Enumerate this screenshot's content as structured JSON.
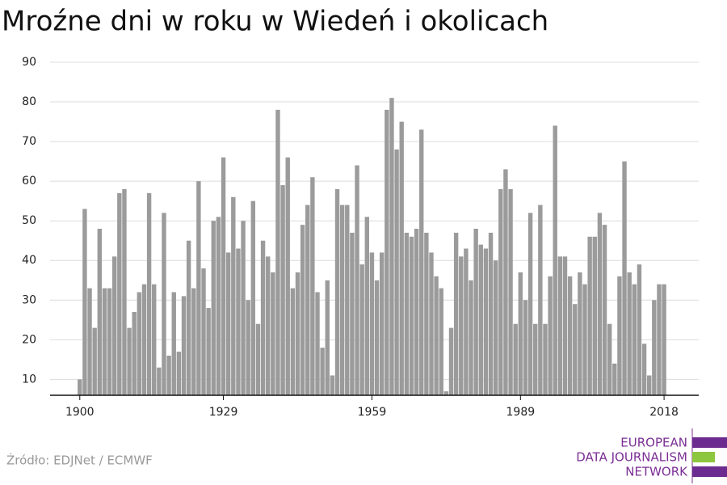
{
  "chart_data": {
    "type": "bar",
    "title": "Mroźne dni w roku w Wiedeń i okolicach",
    "x": [
      1900,
      1901,
      1902,
      1903,
      1904,
      1905,
      1906,
      1907,
      1908,
      1909,
      1910,
      1911,
      1912,
      1913,
      1914,
      1915,
      1916,
      1917,
      1918,
      1919,
      1920,
      1921,
      1922,
      1923,
      1924,
      1925,
      1926,
      1927,
      1928,
      1929,
      1930,
      1931,
      1932,
      1933,
      1934,
      1935,
      1936,
      1937,
      1938,
      1939,
      1940,
      1941,
      1942,
      1943,
      1944,
      1945,
      1946,
      1947,
      1948,
      1949,
      1950,
      1951,
      1952,
      1953,
      1954,
      1955,
      1956,
      1957,
      1958,
      1959,
      1960,
      1961,
      1962,
      1963,
      1964,
      1965,
      1966,
      1967,
      1968,
      1969,
      1970,
      1971,
      1972,
      1973,
      1974,
      1975,
      1976,
      1977,
      1978,
      1979,
      1980,
      1981,
      1982,
      1983,
      1984,
      1985,
      1986,
      1987,
      1988,
      1989,
      1990,
      1991,
      1992,
      1993,
      1994,
      1995,
      1996,
      1997,
      1998,
      1999,
      2000,
      2001,
      2002,
      2003,
      2004,
      2005,
      2006,
      2007,
      2008,
      2009,
      2010,
      2011,
      2012,
      2013,
      2014,
      2015,
      2016,
      2017,
      2018
    ],
    "values": [
      10,
      53,
      33,
      23,
      48,
      33,
      33,
      41,
      57,
      58,
      23,
      27,
      32,
      34,
      57,
      34,
      13,
      52,
      16,
      32,
      17,
      31,
      45,
      33,
      60,
      38,
      28,
      50,
      51,
      66,
      42,
      56,
      43,
      50,
      30,
      55,
      24,
      45,
      41,
      37,
      78,
      59,
      66,
      33,
      37,
      49,
      54,
      61,
      32,
      18,
      35,
      11,
      58,
      54,
      54,
      47,
      64,
      39,
      51,
      42,
      35,
      42,
      78,
      81,
      68,
      75,
      47,
      46,
      48,
      73,
      47,
      42,
      36,
      33,
      7,
      23,
      47,
      41,
      43,
      35,
      48,
      44,
      43,
      47,
      40,
      58,
      63,
      58,
      24,
      37,
      30,
      52,
      24,
      54,
      24,
      36,
      74,
      41,
      41,
      36,
      29,
      37,
      34,
      46,
      46,
      52,
      49,
      24,
      14,
      36,
      65,
      37,
      34,
      39,
      19,
      11,
      30,
      34,
      34
    ],
    "color": "#9b9b9b",
    "xlim": [
      1894,
      2025
    ],
    "xticks": [
      1900,
      1929,
      1959,
      1989,
      2018
    ],
    "ylim": [
      6,
      90
    ],
    "yticks": [
      10,
      20,
      30,
      40,
      50,
      60,
      70,
      80,
      90
    ],
    "grid": true,
    "source": "Źródło: EDJNet / ECMWF"
  },
  "branding": [
    "EUROPEAN",
    "DATA JOURNALISM",
    "NETWORK"
  ]
}
